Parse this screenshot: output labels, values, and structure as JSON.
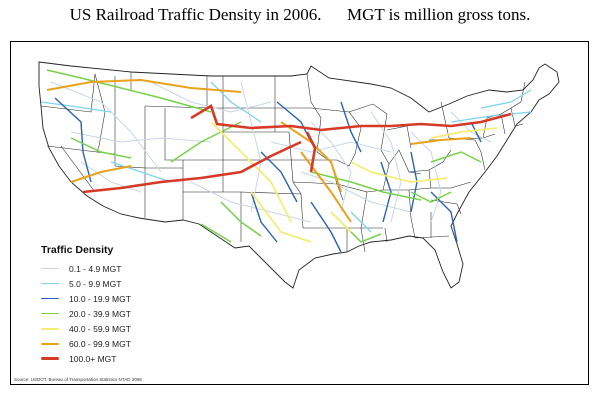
{
  "title": "US Railroad Traffic Density in 2006.      MGT is million gross tons.",
  "legend": {
    "title": "Traffic Density",
    "items": [
      {
        "label": "0.1 - 4.9 MGT",
        "color": "#c9d6e8"
      },
      {
        "label": "5.0 - 9.9 MGT",
        "color": "#7fd3f0"
      },
      {
        "label": "10.0 - 19.9 MGT",
        "color": "#2a62b8"
      },
      {
        "label": "20.0 - 39.9 MGT",
        "color": "#77d24a"
      },
      {
        "label": "40.0 - 59.9 MGT",
        "color": "#f3ee73"
      },
      {
        "label": "60.0 - 99.9 MGT",
        "color": "#e9a21a"
      },
      {
        "label": "100.0+ MGT",
        "color": "#d63a27"
      }
    ]
  },
  "source": "Source: USDOT, Bureau of Transportation Statistics NTAD 2008",
  "map_colors": {
    "land": "#ffffff",
    "state_border": "#222222"
  }
}
